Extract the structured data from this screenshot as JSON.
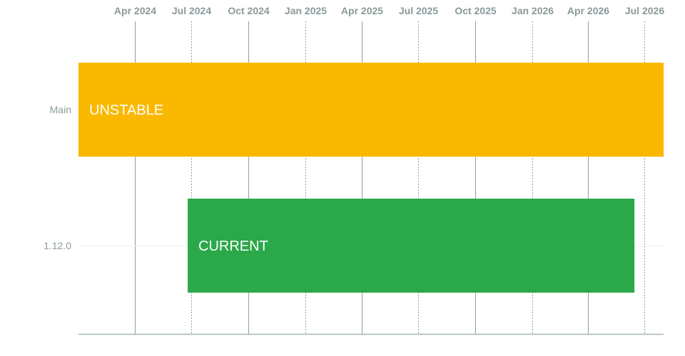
{
  "chart_data": {
    "type": "timeline",
    "x_axis": {
      "type": "date",
      "range": [
        "2024-01-01",
        "2026-08-01"
      ],
      "ticks": [
        {
          "date": "2024-04-01",
          "label": "Apr 2024",
          "style": "solid"
        },
        {
          "date": "2024-07-01",
          "label": "Jul 2024",
          "style": "dotted"
        },
        {
          "date": "2024-10-01",
          "label": "Oct 2024",
          "style": "solid"
        },
        {
          "date": "2025-01-01",
          "label": "Jan 2025",
          "style": "dotted"
        },
        {
          "date": "2025-04-01",
          "label": "Apr 2025",
          "style": "solid"
        },
        {
          "date": "2025-07-01",
          "label": "Jul 2025",
          "style": "dotted"
        },
        {
          "date": "2025-10-01",
          "label": "Oct 2025",
          "style": "solid"
        },
        {
          "date": "2026-01-01",
          "label": "Jan 2026",
          "style": "dotted"
        },
        {
          "date": "2026-04-01",
          "label": "Apr 2026",
          "style": "solid"
        },
        {
          "date": "2026-07-01",
          "label": "Jul 2026",
          "style": "dotted"
        }
      ]
    },
    "rows": [
      {
        "label": "Main",
        "bar_label": "UNSTABLE",
        "start": "2024-01-01",
        "end": "2026-08-01",
        "color": "#fbb800"
      },
      {
        "label": "1.12.0",
        "bar_label": "CURRENT",
        "start": "2024-06-25",
        "end": "2026-06-15",
        "color": "#2ba84a"
      }
    ],
    "grid": true,
    "legend": "none"
  },
  "colors": {
    "tick_text": "#8a9a9a",
    "gridline": "#8fa0a0",
    "axis": "#a8b4b4",
    "row_line": "#eef1f1",
    "bar_text": "#ffffff"
  }
}
